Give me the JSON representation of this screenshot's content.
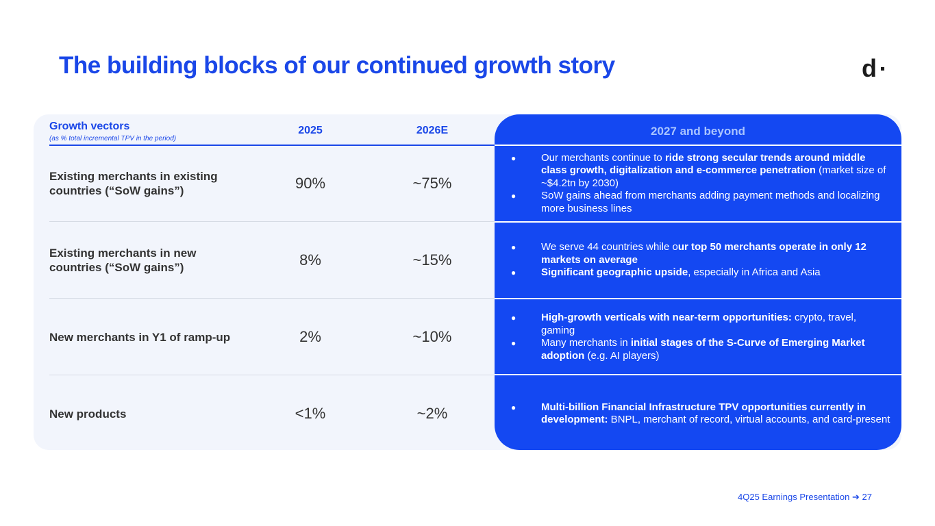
{
  "slide": {
    "title": "The building blocks of our continued growth story",
    "logo": "d",
    "footer": {
      "presentation": "4Q25 Earnings Presentation",
      "arrow": "➔",
      "page": "27"
    }
  },
  "table": {
    "headers": {
      "vectors": "Growth vectors",
      "vectors_note": "(as % total incremental TPV in the period)",
      "y2025": "2025",
      "y2026": "2026E",
      "beyond": "2027 and beyond"
    },
    "rows": [
      {
        "label": "Existing merchants in existing countries (“SoW gains”)",
        "v2025": "90%",
        "v2026": "~75%",
        "bullets": [
          [
            "Our merchants continue to ",
            "ride strong secular trends around middle class growth, digitalization and e-commerce penetration",
            " (market size of ~$4.2tn by 2030)"
          ],
          [
            "SoW gains ahead from  merchants adding payment methods and localizing more  business lines",
            "",
            ""
          ]
        ]
      },
      {
        "label": "Existing merchants in new countries  (“SoW gains”)",
        "v2025": "8%",
        "v2026": "~15%",
        "bullets": [
          [
            "We serve 44 countries while o",
            "ur top 50 merchants operate in only 12 markets on average",
            ""
          ],
          [
            "",
            "Significant geographic upside",
            ", especially in Africa and Asia"
          ]
        ]
      },
      {
        "label": "New merchants in Y1 of ramp-up",
        "v2025": "2%",
        "v2026": "~10%",
        "bullets": [
          [
            "",
            "High-growth verticals with near-term opportunities:",
            " crypto, travel, gaming"
          ],
          [
            "Many merchants  in ",
            "initial stages of the S-Curve of Emerging Market adoption",
            " (e.g. AI players)"
          ]
        ]
      },
      {
        "label": "New products",
        "v2025": "<1%",
        "v2026": "~2%",
        "bullets": [
          [
            "",
            "Multi-billion Financial Infrastructure  TPV opportunities currently in development:",
            " BNPL, merchant of record, virtual accounts, and card-present"
          ]
        ]
      }
    ]
  },
  "colors": {
    "accent": "#1a47e8",
    "panel_blue": "#1448f2",
    "panel_bg": "#f2f5fc"
  }
}
